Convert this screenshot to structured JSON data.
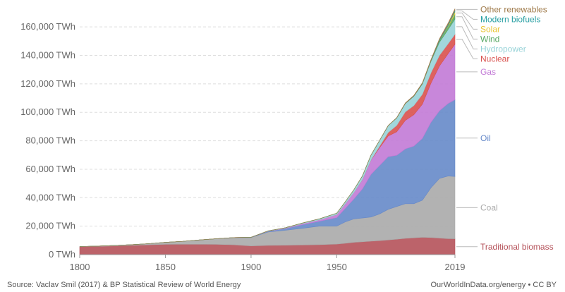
{
  "chart_data": {
    "type": "area",
    "stacked": true,
    "xlim": [
      1800,
      2019
    ],
    "ylim": [
      0,
      170000
    ],
    "y_ticks": [
      0,
      20000,
      40000,
      60000,
      80000,
      100000,
      120000,
      140000,
      160000
    ],
    "y_tick_labels": [
      "0 TWh",
      "20,000 TWh",
      "40,000 TWh",
      "60,000 TWh",
      "80,000 TWh",
      "100,000 TWh",
      "120,000 TWh",
      "140,000 TWh",
      "160,000 TWh"
    ],
    "x_ticks": [
      1800,
      1850,
      1900,
      1950,
      2019
    ],
    "x_tick_labels": [
      "1800",
      "1850",
      "1900",
      "1950",
      "2019"
    ],
    "grid": "horizontal dashed",
    "legend": "right (labels at series ends)",
    "x": [
      1800,
      1810,
      1820,
      1830,
      1840,
      1850,
      1860,
      1870,
      1880,
      1890,
      1900,
      1910,
      1920,
      1930,
      1940,
      1950,
      1955,
      1960,
      1965,
      1970,
      1975,
      1980,
      1985,
      1990,
      1995,
      2000,
      2005,
      2010,
      2015,
      2019
    ],
    "series": [
      {
        "name": "Traditional biomass",
        "color": "#b5525a",
        "values": [
          5600,
          5800,
          6100,
          6500,
          6900,
          7200,
          7300,
          7300,
          7200,
          6900,
          6100,
          6500,
          6600,
          6800,
          7000,
          7400,
          8000,
          8600,
          9000,
          9400,
          9800,
          10300,
          10800,
          11400,
          11800,
          12200,
          12000,
          11600,
          11200,
          11100
        ]
      },
      {
        "name": "Coal",
        "color": "#aaaaaa",
        "values": [
          100,
          200,
          300,
          500,
          800,
          1400,
          2000,
          3000,
          4000,
          5000,
          5900,
          9400,
          10500,
          11700,
          13000,
          12600,
          15000,
          16500,
          16700,
          17000,
          18800,
          21500,
          23000,
          24400,
          24000,
          26000,
          35000,
          42000,
          44000,
          43800
        ]
      },
      {
        "name": "Oil",
        "color": "#6689c9",
        "values": [
          0,
          0,
          0,
          0,
          0,
          0,
          0,
          0,
          0,
          100,
          200,
          500,
          1200,
          2500,
          3500,
          6000,
          9500,
          14000,
          20500,
          30000,
          34000,
          37000,
          36000,
          38500,
          40500,
          43500,
          46000,
          47500,
          51000,
          54000
        ]
      },
      {
        "name": "Gas",
        "color": "#c27ad6",
        "values": [
          0,
          0,
          0,
          0,
          0,
          0,
          0,
          0,
          0,
          0,
          0,
          100,
          300,
          700,
          1000,
          2100,
          3200,
          4500,
          6500,
          10000,
          12500,
          14500,
          16500,
          20000,
          22000,
          24000,
          27500,
          31500,
          35000,
          39000
        ]
      },
      {
        "name": "Nuclear",
        "color": "#d9514e",
        "values": [
          0,
          0,
          0,
          0,
          0,
          0,
          0,
          0,
          0,
          0,
          0,
          0,
          0,
          0,
          0,
          0,
          0,
          0,
          100,
          200,
          1100,
          2500,
          4500,
          6000,
          6500,
          7000,
          7300,
          7500,
          7000,
          7000
        ]
      },
      {
        "name": "Hydropower",
        "color": "#98d3d8",
        "values": [
          0,
          0,
          0,
          0,
          0,
          0,
          0,
          0,
          0,
          0,
          0,
          200,
          300,
          500,
          700,
          1000,
          1400,
          2000,
          2500,
          3400,
          4000,
          4800,
          5200,
          5800,
          6500,
          7200,
          8000,
          9200,
          10000,
          10500
        ]
      },
      {
        "name": "Wind",
        "color": "#59a865",
        "values": [
          0,
          0,
          0,
          0,
          0,
          0,
          0,
          0,
          0,
          0,
          0,
          0,
          0,
          0,
          0,
          0,
          0,
          0,
          0,
          0,
          0,
          0,
          0,
          0,
          0,
          100,
          300,
          900,
          2000,
          3500
        ]
      },
      {
        "name": "Solar",
        "color": "#e8c531",
        "values": [
          0,
          0,
          0,
          0,
          0,
          0,
          0,
          0,
          0,
          0,
          0,
          0,
          0,
          0,
          0,
          0,
          0,
          0,
          0,
          0,
          0,
          0,
          0,
          0,
          0,
          0,
          0,
          100,
          600,
          1800
        ]
      },
      {
        "name": "Modern biofuels",
        "color": "#2aa0a4",
        "values": [
          0,
          0,
          0,
          0,
          0,
          0,
          0,
          0,
          0,
          0,
          0,
          0,
          0,
          0,
          0,
          0,
          0,
          0,
          0,
          0,
          0,
          0,
          100,
          150,
          200,
          250,
          400,
          800,
          1000,
          1100
        ]
      },
      {
        "name": "Other renewables",
        "color": "#9f7a4a",
        "values": [
          0,
          0,
          0,
          0,
          0,
          0,
          0,
          0,
          0,
          0,
          0,
          0,
          0,
          0,
          0,
          0,
          0,
          0,
          0,
          0,
          0,
          100,
          200,
          300,
          400,
          500,
          600,
          700,
          900,
          1000
        ]
      }
    ]
  },
  "footer": {
    "source": "Source: Vaclav Smil (2017) & BP Statistical Review of World Energy",
    "brand": "OurWorldInData.org/energy • CC BY"
  }
}
